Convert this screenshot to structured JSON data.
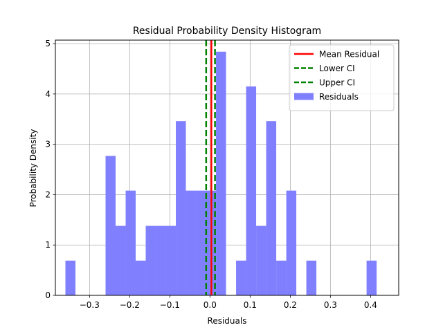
{
  "chart_data": {
    "type": "bar",
    "title": "Residual Probability Density Histogram",
    "xlabel": "Residuals",
    "ylabel": "Probability Density",
    "xlim": [
      -0.385,
      0.47
    ],
    "ylim": [
      0,
      5.07
    ],
    "xticks": [
      -0.3,
      -0.2,
      -0.1,
      0.0,
      0.1,
      0.2,
      0.3,
      0.4
    ],
    "xtick_labels": [
      "−0.3",
      "−0.2",
      "−0.1",
      "0.0",
      "0.1",
      "0.2",
      "0.3",
      "0.4"
    ],
    "yticks": [
      0,
      1,
      2,
      3,
      4,
      5
    ],
    "ytick_labels": [
      "0",
      "1",
      "2",
      "3",
      "4",
      "5"
    ],
    "grid": true,
    "legend_position": "top-right",
    "histogram": {
      "name": "Residuals",
      "color": "#8080ff",
      "bin_width": 0.025,
      "bins": [
        {
          "x0": -0.36,
          "value": 0.69
        },
        {
          "x0": -0.335,
          "value": 0
        },
        {
          "x0": -0.31,
          "value": 0
        },
        {
          "x0": -0.285,
          "value": 0
        },
        {
          "x0": -0.26,
          "value": 2.77
        },
        {
          "x0": -0.235,
          "value": 1.38
        },
        {
          "x0": -0.21,
          "value": 2.08
        },
        {
          "x0": -0.185,
          "value": 0.69
        },
        {
          "x0": -0.16,
          "value": 1.38
        },
        {
          "x0": -0.135,
          "value": 1.38
        },
        {
          "x0": -0.11,
          "value": 1.38
        },
        {
          "x0": -0.085,
          "value": 3.46
        },
        {
          "x0": -0.06,
          "value": 2.08
        },
        {
          "x0": -0.035,
          "value": 2.08
        },
        {
          "x0": -0.01,
          "value": 2.08
        },
        {
          "x0": 0.015,
          "value": 4.84
        },
        {
          "x0": 0.04,
          "value": 0
        },
        {
          "x0": 0.065,
          "value": 0.69
        },
        {
          "x0": 0.09,
          "value": 4.15
        },
        {
          "x0": 0.115,
          "value": 1.38
        },
        {
          "x0": 0.14,
          "value": 3.46
        },
        {
          "x0": 0.165,
          "value": 0.69
        },
        {
          "x0": 0.19,
          "value": 2.08
        },
        {
          "x0": 0.215,
          "value": 0
        },
        {
          "x0": 0.24,
          "value": 0.69
        },
        {
          "x0": 0.265,
          "value": 0
        },
        {
          "x0": 0.29,
          "value": 0
        },
        {
          "x0": 0.315,
          "value": 0
        },
        {
          "x0": 0.34,
          "value": 0
        },
        {
          "x0": 0.365,
          "value": 0
        },
        {
          "x0": 0.39,
          "value": 0.69
        }
      ]
    },
    "vlines": [
      {
        "name": "Mean Residual",
        "x": 0.0035,
        "color": "#ff0000",
        "style": "solid"
      },
      {
        "name": "Lower CI",
        "x": -0.0095,
        "color": "#008000",
        "style": "dashed"
      },
      {
        "name": "Upper CI",
        "x": 0.0125,
        "color": "#008000",
        "style": "dashed"
      }
    ],
    "legend": [
      "Mean Residual",
      "Lower CI",
      "Upper CI",
      "Residuals"
    ]
  }
}
